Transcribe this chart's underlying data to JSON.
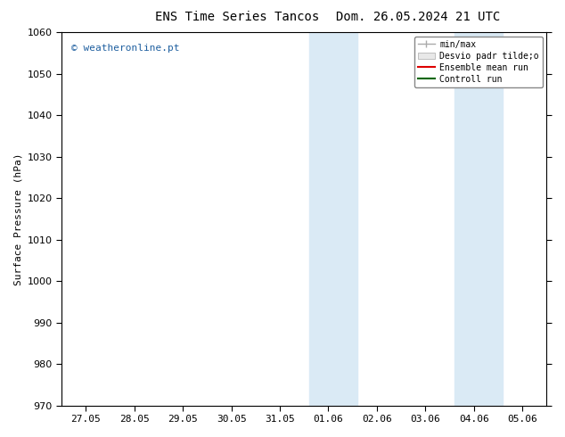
{
  "title_left": "ENS Time Series Tancos",
  "title_right": "Dom. 26.05.2024 21 UTC",
  "ylabel": "Surface Pressure (hPa)",
  "ylim": [
    970,
    1060
  ],
  "yticks": [
    970,
    980,
    990,
    1000,
    1010,
    1020,
    1030,
    1040,
    1050,
    1060
  ],
  "xtick_labels": [
    "27.05",
    "28.05",
    "29.05",
    "30.05",
    "31.05",
    "01.06",
    "02.06",
    "03.06",
    "04.06",
    "05.06"
  ],
  "xtick_positions": [
    0,
    1,
    2,
    3,
    4,
    5,
    6,
    7,
    8,
    9
  ],
  "shade_bands": [
    {
      "xstart": 4.6,
      "xend": 5.6
    },
    {
      "xstart": 7.6,
      "xend": 8.6
    }
  ],
  "shade_color": "#daeaf5",
  "background_color": "#ffffff",
  "plot_background": "#ffffff",
  "watermark": "© weatheronline.pt",
  "watermark_color": "#2060a0",
  "legend_labels": [
    "min/max",
    "Desvio padr tilde;o",
    "Ensemble mean run",
    "Controll run"
  ],
  "legend_colors_line": [
    "#aaaaaa",
    "#cccccc",
    "#dd0000",
    "#006600"
  ],
  "title_fontsize": 10,
  "axis_fontsize": 8,
  "tick_fontsize": 8,
  "legend_fontsize": 7
}
